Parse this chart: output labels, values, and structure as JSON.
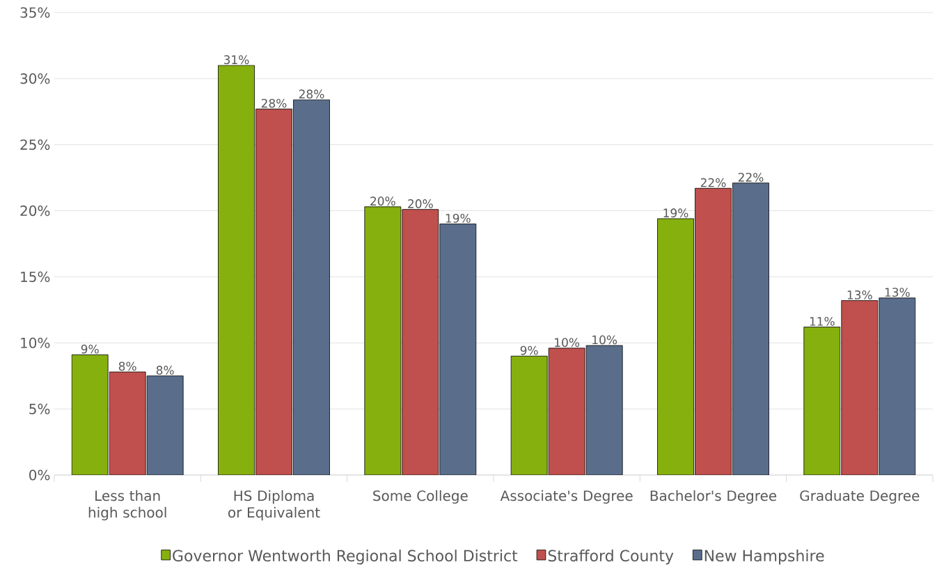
{
  "chart_data": {
    "type": "bar",
    "categories": [
      "Less than high school",
      "HS Diploma or Equivalent",
      "Some College",
      "Associate's Degree",
      "Bachelor's Degree",
      "Graduate Degree"
    ],
    "series": [
      {
        "name": "Governor Wentworth Regional School District",
        "color": "#86b00e",
        "values": [
          9.1,
          31.0,
          20.3,
          9.0,
          19.4,
          11.2
        ],
        "value_labels": [
          "9%",
          "31%",
          "20%",
          "9%",
          "19%",
          "11%"
        ]
      },
      {
        "name": "Strafford County",
        "color": "#c0504d",
        "values": [
          7.8,
          27.7,
          20.1,
          9.6,
          21.7,
          13.2
        ],
        "value_labels": [
          "8%",
          "28%",
          "20%",
          "10%",
          "22%",
          "13%"
        ]
      },
      {
        "name": "New Hampshire",
        "color": "#5a6e8c",
        "values": [
          7.5,
          28.4,
          19.0,
          9.8,
          22.1,
          13.4
        ],
        "value_labels": [
          "8%",
          "28%",
          "19%",
          "10%",
          "22%",
          "13%"
        ]
      }
    ],
    "ylim": [
      0,
      35
    ],
    "yticks": [
      {
        "value": 0,
        "label": "0%"
      },
      {
        "value": 5,
        "label": "5%"
      },
      {
        "value": 10,
        "label": "10%"
      },
      {
        "value": 15,
        "label": "15%"
      },
      {
        "value": 20,
        "label": "20%"
      },
      {
        "value": 25,
        "label": "25%"
      },
      {
        "value": 30,
        "label": "30%"
      },
      {
        "value": 35,
        "label": "35%"
      }
    ],
    "grid": "y",
    "legend": "bottom"
  }
}
